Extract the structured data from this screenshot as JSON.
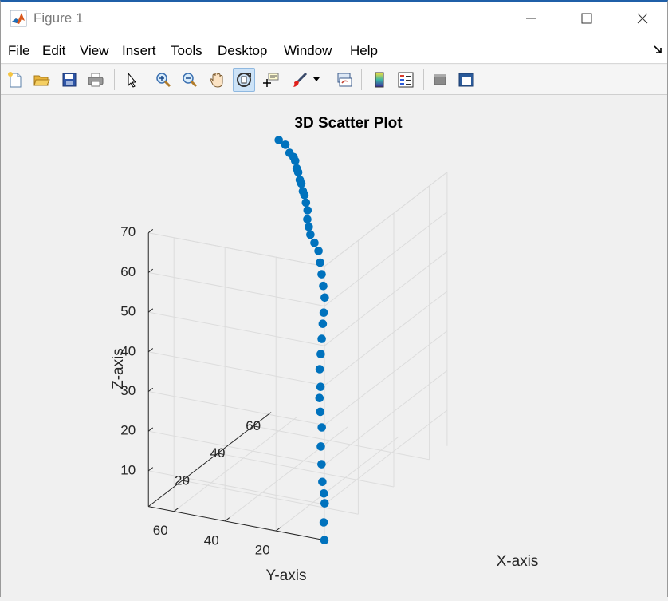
{
  "window": {
    "title": "Figure 1"
  },
  "menu": {
    "items": [
      "File",
      "Edit",
      "View",
      "Insert",
      "Tools",
      "Desktop",
      "Window",
      "Help"
    ]
  },
  "toolbar": {
    "icons": [
      "new-figure-icon",
      "open-file-icon",
      "save-icon",
      "print-icon",
      "edit-plot-arrow-icon",
      "zoom-in-icon",
      "zoom-out-icon",
      "pan-hand-icon",
      "rotate-3d-icon",
      "data-cursor-icon",
      "brush-icon",
      "brush-dropdown-icon",
      "link-plot-icon",
      "colorbar-icon",
      "legend-icon",
      "hide-plot-tools-icon",
      "show-plot-tools-icon"
    ],
    "active": "rotate-3d-icon"
  },
  "colors": {
    "marker": "#0072BD",
    "axis": "#262626",
    "grid": "#dcdcdc",
    "title_bar_accent": "#1f5fa8"
  },
  "chart_data": {
    "type": "scatter",
    "title": "3D Scatter Plot",
    "xlabel": "X-axis",
    "ylabel": "Y-axis",
    "zlabel": "Z-axis",
    "x_ticks": [
      "20",
      "40",
      "60"
    ],
    "y_ticks": [
      "20",
      "40",
      "60"
    ],
    "z_ticks": [
      "10",
      "20",
      "30",
      "40",
      "50",
      "60",
      "70"
    ],
    "xlim": [
      1,
      70
    ],
    "ylim": [
      1,
      70
    ],
    "zlim": [
      1,
      70
    ],
    "grid": true,
    "box": false,
    "x": [
      1,
      2,
      4,
      5,
      7,
      8,
      9,
      11,
      13,
      14,
      16,
      17,
      19,
      21,
      23,
      25,
      27,
      29,
      31,
      33,
      35,
      37,
      39,
      41,
      43,
      46,
      48,
      50,
      52,
      54,
      56,
      58,
      60,
      62,
      64,
      66,
      68,
      70
    ],
    "y": [
      1,
      2,
      3,
      4,
      6,
      7,
      8,
      9,
      11,
      12,
      13,
      14,
      15,
      16,
      17,
      18,
      19,
      21,
      23,
      25,
      27,
      30,
      33,
      35,
      37,
      39,
      41,
      43,
      45,
      47,
      49,
      51,
      53,
      55,
      57,
      60,
      63,
      67
    ],
    "z": [
      1,
      5,
      9,
      11,
      13,
      17,
      21,
      25,
      28,
      31,
      33,
      37,
      40,
      43,
      46,
      48,
      51,
      53,
      55,
      57,
      59,
      60,
      61,
      62,
      63,
      64,
      65,
      66,
      66,
      67,
      67,
      68,
      68,
      69,
      69,
      69,
      70,
      70
    ]
  }
}
